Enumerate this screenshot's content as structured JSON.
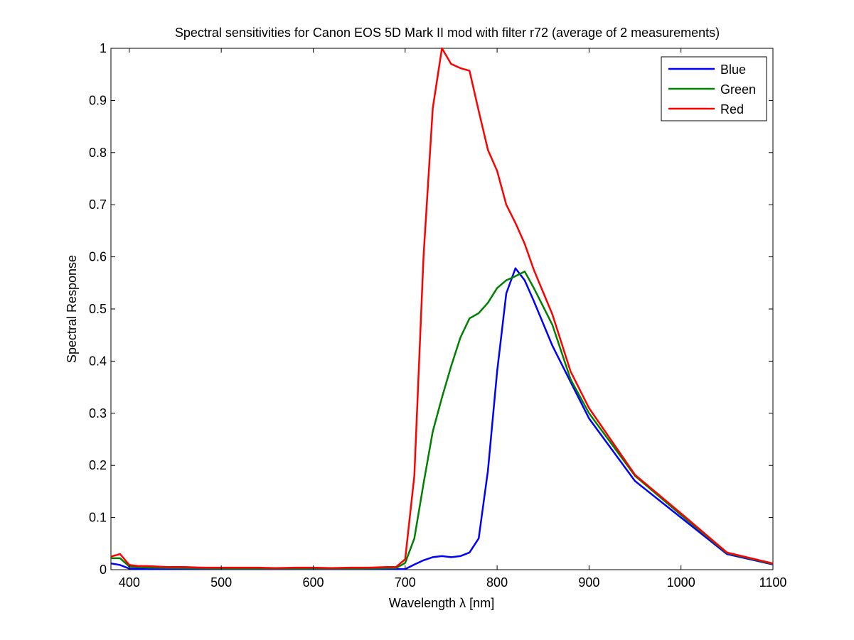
{
  "chart_data": {
    "type": "line",
    "title": "Spectral sensitivities for Canon EOS 5D Mark II mod with filter r72 (average of 2 measurements)",
    "xlabel": "Wavelength λ [nm]",
    "ylabel": "Spectral Response",
    "xlim": [
      380,
      1100
    ],
    "ylim": [
      0,
      1
    ],
    "xticks": [
      400,
      500,
      600,
      700,
      800,
      900,
      1000,
      1100
    ],
    "yticks": [
      0,
      0.1,
      0.2,
      0.3,
      0.4,
      0.5,
      0.6,
      0.7,
      0.8,
      0.9,
      1
    ],
    "ytick_labels": [
      "0",
      "0.1",
      "0.2",
      "0.3",
      "0.4",
      "0.5",
      "0.6",
      "0.7",
      "0.8",
      "0.9",
      "1"
    ],
    "grid": false,
    "legend_position": "top-right",
    "series": [
      {
        "name": "Blue",
        "color": "#0000ff",
        "points": [
          [
            380,
            0.012
          ],
          [
            390,
            0.009
          ],
          [
            400,
            0.002
          ],
          [
            420,
            0.001
          ],
          [
            450,
            0.001
          ],
          [
            500,
            0.001
          ],
          [
            550,
            0.001
          ],
          [
            600,
            0.001
          ],
          [
            650,
            0.001
          ],
          [
            690,
            0.001
          ],
          [
            700,
            0.001
          ],
          [
            710,
            0.01
          ],
          [
            720,
            0.018
          ],
          [
            730,
            0.024
          ],
          [
            740,
            0.026
          ],
          [
            750,
            0.024
          ],
          [
            760,
            0.026
          ],
          [
            770,
            0.033
          ],
          [
            780,
            0.06
          ],
          [
            790,
            0.19
          ],
          [
            800,
            0.38
          ],
          [
            810,
            0.53
          ],
          [
            820,
            0.578
          ],
          [
            830,
            0.555
          ],
          [
            840,
            0.515
          ],
          [
            860,
            0.43
          ],
          [
            880,
            0.36
          ],
          [
            900,
            0.29
          ],
          [
            950,
            0.17
          ],
          [
            1000,
            0.1
          ],
          [
            1050,
            0.03
          ],
          [
            1100,
            0.01
          ]
        ]
      },
      {
        "name": "Green",
        "color": "#008000",
        "points": [
          [
            380,
            0.022
          ],
          [
            390,
            0.022
          ],
          [
            400,
            0.006
          ],
          [
            420,
            0.004
          ],
          [
            450,
            0.003
          ],
          [
            500,
            0.002
          ],
          [
            550,
            0.002
          ],
          [
            600,
            0.002
          ],
          [
            650,
            0.002
          ],
          [
            690,
            0.003
          ],
          [
            700,
            0.013
          ],
          [
            710,
            0.06
          ],
          [
            720,
            0.165
          ],
          [
            730,
            0.265
          ],
          [
            740,
            0.33
          ],
          [
            750,
            0.39
          ],
          [
            760,
            0.445
          ],
          [
            770,
            0.482
          ],
          [
            780,
            0.492
          ],
          [
            790,
            0.512
          ],
          [
            800,
            0.54
          ],
          [
            810,
            0.555
          ],
          [
            820,
            0.563
          ],
          [
            830,
            0.572
          ],
          [
            840,
            0.54
          ],
          [
            860,
            0.47
          ],
          [
            880,
            0.365
          ],
          [
            900,
            0.3
          ],
          [
            950,
            0.18
          ],
          [
            1000,
            0.105
          ],
          [
            1050,
            0.032
          ],
          [
            1100,
            0.011
          ]
        ]
      },
      {
        "name": "Red",
        "color": "#ff0000",
        "points": [
          [
            380,
            0.025
          ],
          [
            390,
            0.03
          ],
          [
            400,
            0.009
          ],
          [
            410,
            0.007
          ],
          [
            420,
            0.007
          ],
          [
            440,
            0.005
          ],
          [
            460,
            0.005
          ],
          [
            480,
            0.004
          ],
          [
            500,
            0.004
          ],
          [
            520,
            0.004
          ],
          [
            540,
            0.004
          ],
          [
            560,
            0.003
          ],
          [
            580,
            0.004
          ],
          [
            600,
            0.004
          ],
          [
            620,
            0.003
          ],
          [
            640,
            0.004
          ],
          [
            660,
            0.004
          ],
          [
            680,
            0.005
          ],
          [
            690,
            0.005
          ],
          [
            700,
            0.02
          ],
          [
            710,
            0.18
          ],
          [
            720,
            0.6
          ],
          [
            730,
            0.885
          ],
          [
            740,
            1.0
          ],
          [
            750,
            0.97
          ],
          [
            760,
            0.962
          ],
          [
            770,
            0.957
          ],
          [
            780,
            0.88
          ],
          [
            790,
            0.805
          ],
          [
            800,
            0.765
          ],
          [
            810,
            0.7
          ],
          [
            820,
            0.665
          ],
          [
            830,
            0.625
          ],
          [
            840,
            0.575
          ],
          [
            860,
            0.49
          ],
          [
            880,
            0.38
          ],
          [
            900,
            0.31
          ],
          [
            950,
            0.182
          ],
          [
            1000,
            0.108
          ],
          [
            1050,
            0.033
          ],
          [
            1100,
            0.012
          ]
        ]
      }
    ]
  }
}
